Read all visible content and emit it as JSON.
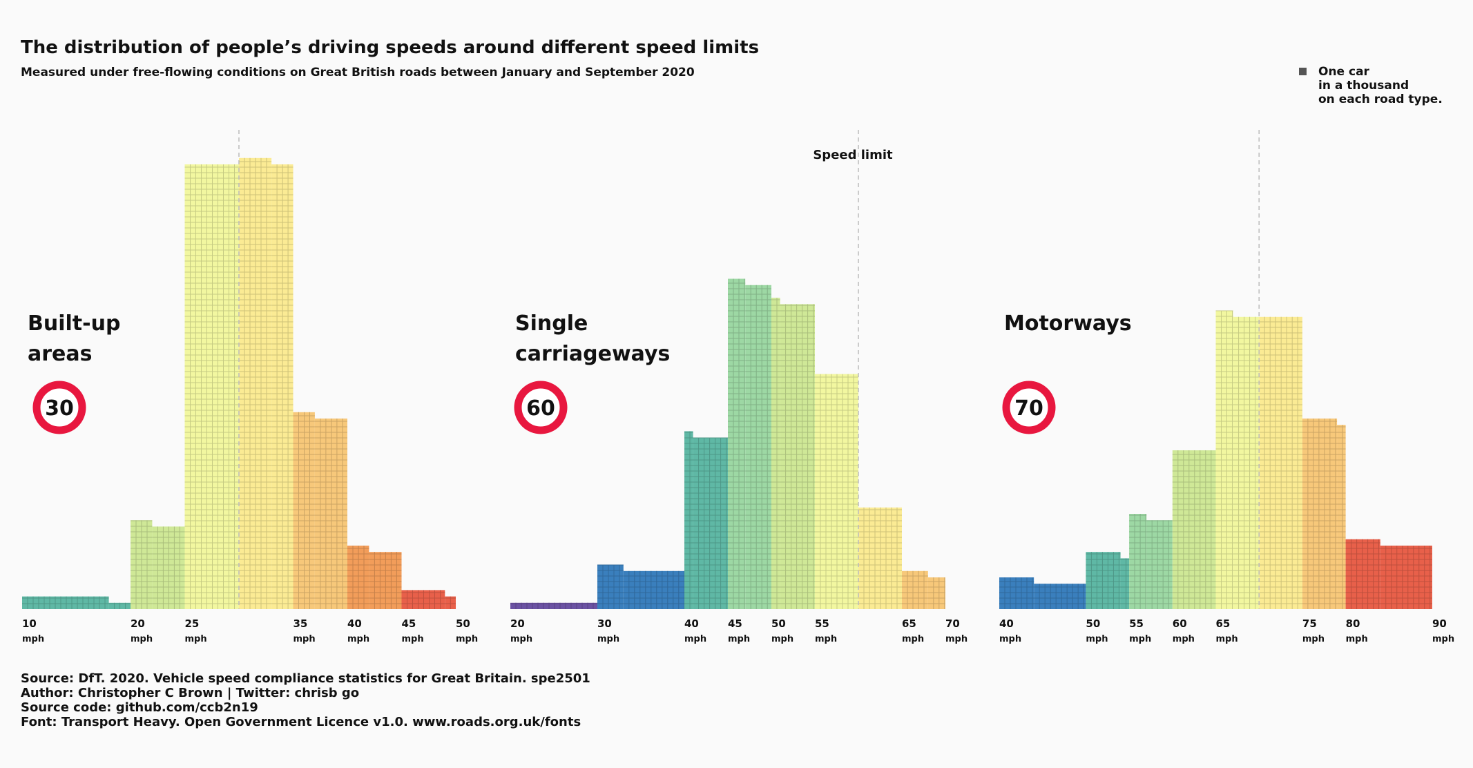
{
  "title": "The distribution of people’s driving speeds around different speed limits",
  "subtitle": "Measured under free-flowing conditions on Great British roads between January and September 2020",
  "legend": {
    "lines": [
      "One car",
      "in a thousand",
      "on each road type."
    ],
    "marker_color": "#555555"
  },
  "annotation": "Speed limit",
  "source_lines": [
    "Source: DfT. 2020. Vehicle speed compliance statistics for Great Britain. spe2501",
    "Author: Christopher C Brown | Twitter: chrisb go",
    "Source code: github.com/ccb2n19",
    "Font: Transport Heavy. Open Government Licence v1.0. www.roads.org.uk/fonts"
  ],
  "colors": {
    "sign_ring": "#e8173f",
    "background": "#fafafa",
    "text": "#111111",
    "dashed_line": "#bbbbbb"
  },
  "chart_data": [
    {
      "type": "bar",
      "panel_title": [
        "Built-up",
        "areas"
      ],
      "speed_limit_sign": "30",
      "speed_limit_value": 30,
      "unit": "mph",
      "xlim": [
        10,
        50
      ],
      "tick_labels": [
        "10",
        "20",
        "25",
        "35",
        "40",
        "45",
        "50"
      ],
      "tick_values": [
        10,
        20,
        25,
        35,
        40,
        45,
        50
      ],
      "y_unit": "cars per thousand",
      "bars": [
        {
          "x0": 10,
          "x1": 18,
          "value": 20,
          "color": "#5fb8a5"
        },
        {
          "x0": 18,
          "x1": 20,
          "value": 10,
          "color": "#5fb8a5"
        },
        {
          "x0": 20,
          "x1": 22,
          "value": 140,
          "color": "#cfe897"
        },
        {
          "x0": 22,
          "x1": 25,
          "value": 130,
          "color": "#cfe897"
        },
        {
          "x0": 25,
          "x1": 30,
          "value": 700,
          "color": "#f2f7a0"
        },
        {
          "x0": 30,
          "x1": 33,
          "value": 710,
          "color": "#fbeb94"
        },
        {
          "x0": 33,
          "x1": 35,
          "value": 700,
          "color": "#fbeb94"
        },
        {
          "x0": 35,
          "x1": 37,
          "value": 310,
          "color": "#f7c87a"
        },
        {
          "x0": 37,
          "x1": 40,
          "value": 300,
          "color": "#f7c87a"
        },
        {
          "x0": 40,
          "x1": 42,
          "value": 100,
          "color": "#f29d5a"
        },
        {
          "x0": 42,
          "x1": 45,
          "value": 90,
          "color": "#f29d5a"
        },
        {
          "x0": 45,
          "x1": 49,
          "value": 30,
          "color": "#e8604a"
        },
        {
          "x0": 49,
          "x1": 50,
          "value": 20,
          "color": "#e8604a"
        }
      ]
    },
    {
      "type": "bar",
      "panel_title": [
        "Single",
        "carriageways"
      ],
      "speed_limit_sign": "60",
      "speed_limit_value": 60,
      "unit": "mph",
      "xlim": [
        20,
        70
      ],
      "tick_labels": [
        "20",
        "30",
        "40",
        "45",
        "50",
        "55",
        "65",
        "70"
      ],
      "tick_values": [
        20,
        30,
        40,
        45,
        50,
        55,
        65,
        70
      ],
      "y_unit": "cars per thousand",
      "bars": [
        {
          "x0": 20,
          "x1": 30,
          "value": 10,
          "color": "#6b52a3"
        },
        {
          "x0": 30,
          "x1": 33,
          "value": 70,
          "color": "#3a7fbd"
        },
        {
          "x0": 33,
          "x1": 40,
          "value": 60,
          "color": "#3a7fbd"
        },
        {
          "x0": 40,
          "x1": 41,
          "value": 280,
          "color": "#5fb8a5"
        },
        {
          "x0": 41,
          "x1": 45,
          "value": 270,
          "color": "#5fb8a5"
        },
        {
          "x0": 45,
          "x1": 47,
          "value": 520,
          "color": "#9dd8a4"
        },
        {
          "x0": 47,
          "x1": 50,
          "value": 510,
          "color": "#9dd8a4"
        },
        {
          "x0": 50,
          "x1": 51,
          "value": 490,
          "color": "#cfe897"
        },
        {
          "x0": 51,
          "x1": 55,
          "value": 480,
          "color": "#cfe897"
        },
        {
          "x0": 55,
          "x1": 60,
          "value": 370,
          "color": "#f2f7a0"
        },
        {
          "x0": 60,
          "x1": 65,
          "value": 160,
          "color": "#fbeb94"
        },
        {
          "x0": 65,
          "x1": 68,
          "value": 60,
          "color": "#f7c87a"
        },
        {
          "x0": 68,
          "x1": 70,
          "value": 50,
          "color": "#f7c87a"
        }
      ]
    },
    {
      "type": "bar",
      "panel_title": [
        "Motorways"
      ],
      "speed_limit_sign": "70",
      "speed_limit_value": 70,
      "unit": "mph",
      "xlim": [
        40,
        90
      ],
      "tick_labels": [
        "40",
        "50",
        "55",
        "60",
        "65",
        "75",
        "80",
        "90"
      ],
      "tick_values": [
        40,
        50,
        55,
        60,
        65,
        75,
        80,
        90
      ],
      "y_unit": "cars per thousand",
      "bars": [
        {
          "x0": 40,
          "x1": 44,
          "value": 50,
          "color": "#3a7fbd"
        },
        {
          "x0": 44,
          "x1": 50,
          "value": 40,
          "color": "#3a7fbd"
        },
        {
          "x0": 50,
          "x1": 54,
          "value": 90,
          "color": "#5fb8a5"
        },
        {
          "x0": 54,
          "x1": 55,
          "value": 80,
          "color": "#5fb8a5"
        },
        {
          "x0": 55,
          "x1": 57,
          "value": 150,
          "color": "#9dd8a4"
        },
        {
          "x0": 57,
          "x1": 60,
          "value": 140,
          "color": "#9dd8a4"
        },
        {
          "x0": 60,
          "x1": 65,
          "value": 250,
          "color": "#cfe897"
        },
        {
          "x0": 65,
          "x1": 67,
          "value": 470,
          "color": "#f2f7a0"
        },
        {
          "x0": 67,
          "x1": 70,
          "value": 460,
          "color": "#f2f7a0"
        },
        {
          "x0": 70,
          "x1": 75,
          "value": 460,
          "color": "#fbeb94"
        },
        {
          "x0": 75,
          "x1": 79,
          "value": 300,
          "color": "#f7c87a"
        },
        {
          "x0": 79,
          "x1": 80,
          "value": 290,
          "color": "#f7c87a"
        },
        {
          "x0": 80,
          "x1": 84,
          "value": 110,
          "color": "#e8604a"
        },
        {
          "x0": 84,
          "x1": 90,
          "value": 100,
          "color": "#e8604a"
        }
      ]
    }
  ]
}
